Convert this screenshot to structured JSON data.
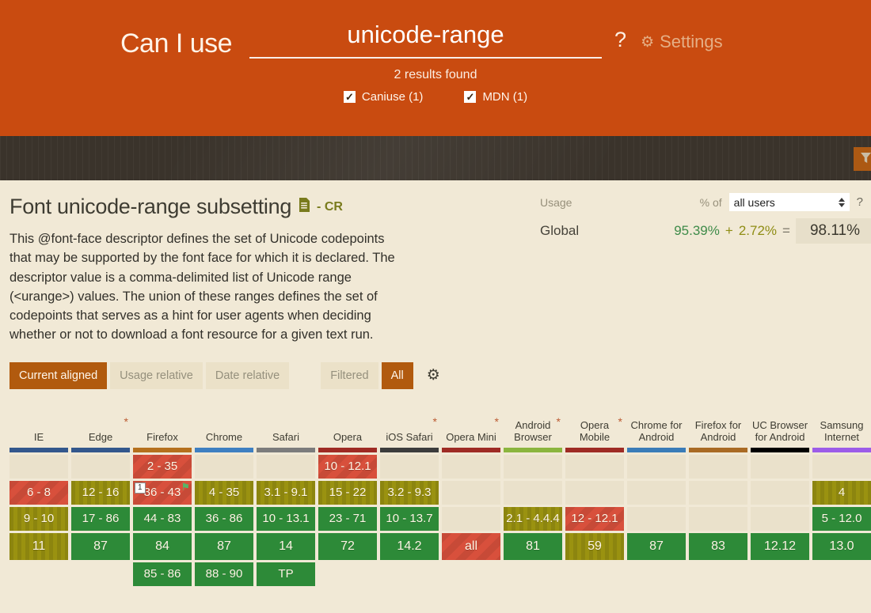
{
  "header": {
    "brand": "Can I use",
    "search_value": "unicode-range",
    "help_label": "?",
    "settings_label": "Settings",
    "results_text": "2 results found",
    "filters": [
      {
        "label": "Caniuse (1)",
        "checked": true
      },
      {
        "label": "MDN (1)",
        "checked": true
      }
    ]
  },
  "feature": {
    "title": "Font unicode-range subsetting",
    "status": "- CR",
    "description": "This @font-face descriptor defines the set of Unicode codepoints that may be supported by the font face for which it is declared. The descriptor value is a comma-delimited list of Unicode range (<urange>) values. The union of these ranges defines the set of codepoints that serves as a hint for user agents when deciding whether or not to download a font resource for a given text run."
  },
  "usage": {
    "label": "Usage",
    "percent_of_label": "% of",
    "select_value": "all users",
    "help_label": "?",
    "row_label": "Global",
    "supported": "95.39%",
    "plus": "+",
    "partial": "2.72%",
    "equals": "=",
    "total": "98.11%"
  },
  "toolbar": {
    "view_buttons": [
      {
        "name": "current-aligned",
        "label": "Current aligned",
        "active": true,
        "gap": false
      },
      {
        "name": "usage-relative",
        "label": "Usage relative",
        "active": false,
        "gap": false
      },
      {
        "name": "date-relative",
        "label": "Date relative",
        "active": false,
        "gap": false
      },
      {
        "name": "filtered",
        "label": "Filtered",
        "active": false,
        "gap": true
      },
      {
        "name": "all",
        "label": "All",
        "active": true,
        "gap": false
      }
    ]
  },
  "colors": {
    "header_orange": "#C94B10",
    "dark_band": "#3A332B",
    "page_background": "#F1E9D6",
    "active_button": "#B15A0E",
    "support_yes": "#2d8a38",
    "support_partial": "#9a9210",
    "support_no": "#d8503c",
    "support_unknown": "#eae1cb"
  },
  "support_table": {
    "cell_colors": {
      "y": "#2d8a38",
      "a": "#9a9210",
      "n": "#d8503c",
      "u": "#eae1cb"
    },
    "row_kinds": [
      "past",
      "past",
      "recent",
      "current",
      "future"
    ],
    "browsers": [
      {
        "name": "IE",
        "star": false,
        "brand_color": "#33578C",
        "cells": [
          {
            "text": "",
            "support": "u"
          },
          {
            "text": "6 - 8",
            "support": "n"
          },
          {
            "text": "9 - 10",
            "support": "a"
          },
          {
            "text": "11",
            "support": "a"
          },
          {
            "text": "",
            "support": ""
          }
        ]
      },
      {
        "name": "Edge",
        "star": true,
        "brand_color": "#33578C",
        "cells": [
          {
            "text": "",
            "support": "u"
          },
          {
            "text": "12 - 16",
            "support": "a"
          },
          {
            "text": "17 - 86",
            "support": "y"
          },
          {
            "text": "87",
            "support": "y"
          },
          {
            "text": "",
            "support": ""
          }
        ]
      },
      {
        "name": "Firefox",
        "star": false,
        "brand_color": "#B5701D",
        "cells": [
          {
            "text": "2 - 35",
            "support": "n"
          },
          {
            "text": "36 - 43",
            "support": "n",
            "note": "1",
            "flag": true
          },
          {
            "text": "44 - 83",
            "support": "y"
          },
          {
            "text": "84",
            "support": "y"
          },
          {
            "text": "85 - 86",
            "support": "y"
          }
        ]
      },
      {
        "name": "Chrome",
        "star": false,
        "brand_color": "#3E7FC1",
        "cells": [
          {
            "text": "",
            "support": "u"
          },
          {
            "text": "4 - 35",
            "support": "a"
          },
          {
            "text": "36 - 86",
            "support": "y"
          },
          {
            "text": "87",
            "support": "y"
          },
          {
            "text": "88 - 90",
            "support": "y"
          }
        ]
      },
      {
        "name": "Safari",
        "star": false,
        "brand_color": "#7C7C7C",
        "cells": [
          {
            "text": "",
            "support": "u"
          },
          {
            "text": "3.1 - 9.1",
            "support": "a"
          },
          {
            "text": "10 - 13.1",
            "support": "y"
          },
          {
            "text": "14",
            "support": "y"
          },
          {
            "text": "TP",
            "support": "y"
          }
        ]
      },
      {
        "name": "Opera",
        "star": false,
        "brand_color": "#9E2B24",
        "cells": [
          {
            "text": "10 - 12.1",
            "support": "n"
          },
          {
            "text": "15 - 22",
            "support": "a"
          },
          {
            "text": "23 - 71",
            "support": "y"
          },
          {
            "text": "72",
            "support": "y"
          },
          {
            "text": "",
            "support": ""
          }
        ]
      },
      {
        "name": "iOS Safari",
        "star": true,
        "brand_color": "#3C3C3C",
        "cells": [
          {
            "text": "",
            "support": "u"
          },
          {
            "text": "3.2 - 9.3",
            "support": "a"
          },
          {
            "text": "10 - 13.7",
            "support": "y"
          },
          {
            "text": "14.2",
            "support": "y"
          },
          {
            "text": "",
            "support": ""
          }
        ]
      },
      {
        "name": "Opera Mini",
        "star": true,
        "brand_color": "#9E2B24",
        "cells": [
          {
            "text": "",
            "support": "u"
          },
          {
            "text": "",
            "support": "u"
          },
          {
            "text": "",
            "support": "u"
          },
          {
            "text": "all",
            "support": "n"
          },
          {
            "text": "",
            "support": ""
          }
        ]
      },
      {
        "name": "Android Browser",
        "star": true,
        "brand_color": "#8BB53E",
        "cells": [
          {
            "text": "",
            "support": "u"
          },
          {
            "text": "",
            "support": "u"
          },
          {
            "text": "2.1 - 4.4.4",
            "support": "a"
          },
          {
            "text": "81",
            "support": "y"
          },
          {
            "text": "",
            "support": ""
          }
        ]
      },
      {
        "name": "Opera Mobile",
        "star": true,
        "brand_color": "#9E2B24",
        "cells": [
          {
            "text": "",
            "support": "u"
          },
          {
            "text": "",
            "support": "u"
          },
          {
            "text": "12 - 12.1",
            "support": "n"
          },
          {
            "text": "59",
            "support": "a"
          },
          {
            "text": "",
            "support": ""
          }
        ]
      },
      {
        "name": "Chrome for Android",
        "star": false,
        "brand_color": "#3A7CB8",
        "cells": [
          {
            "text": "",
            "support": "u"
          },
          {
            "text": "",
            "support": "u"
          },
          {
            "text": "",
            "support": "u"
          },
          {
            "text": "87",
            "support": "y"
          },
          {
            "text": "",
            "support": ""
          }
        ]
      },
      {
        "name": "Firefox for Android",
        "star": false,
        "brand_color": "#A96A24",
        "cells": [
          {
            "text": "",
            "support": "u"
          },
          {
            "text": "",
            "support": "u"
          },
          {
            "text": "",
            "support": "u"
          },
          {
            "text": "83",
            "support": "y"
          },
          {
            "text": "",
            "support": ""
          }
        ]
      },
      {
        "name": "UC Browser for Android",
        "star": false,
        "brand_color": "#000000",
        "cells": [
          {
            "text": "",
            "support": "u"
          },
          {
            "text": "",
            "support": "u"
          },
          {
            "text": "",
            "support": "u"
          },
          {
            "text": "12.12",
            "support": "y"
          },
          {
            "text": "",
            "support": ""
          }
        ]
      },
      {
        "name": "Samsung Internet",
        "star": false,
        "brand_color": "#9C5CE8",
        "cells": [
          {
            "text": "",
            "support": "u"
          },
          {
            "text": "4",
            "support": "a"
          },
          {
            "text": "5 - 12.0",
            "support": "y"
          },
          {
            "text": "13.0",
            "support": "y"
          },
          {
            "text": "",
            "support": ""
          }
        ]
      }
    ]
  }
}
